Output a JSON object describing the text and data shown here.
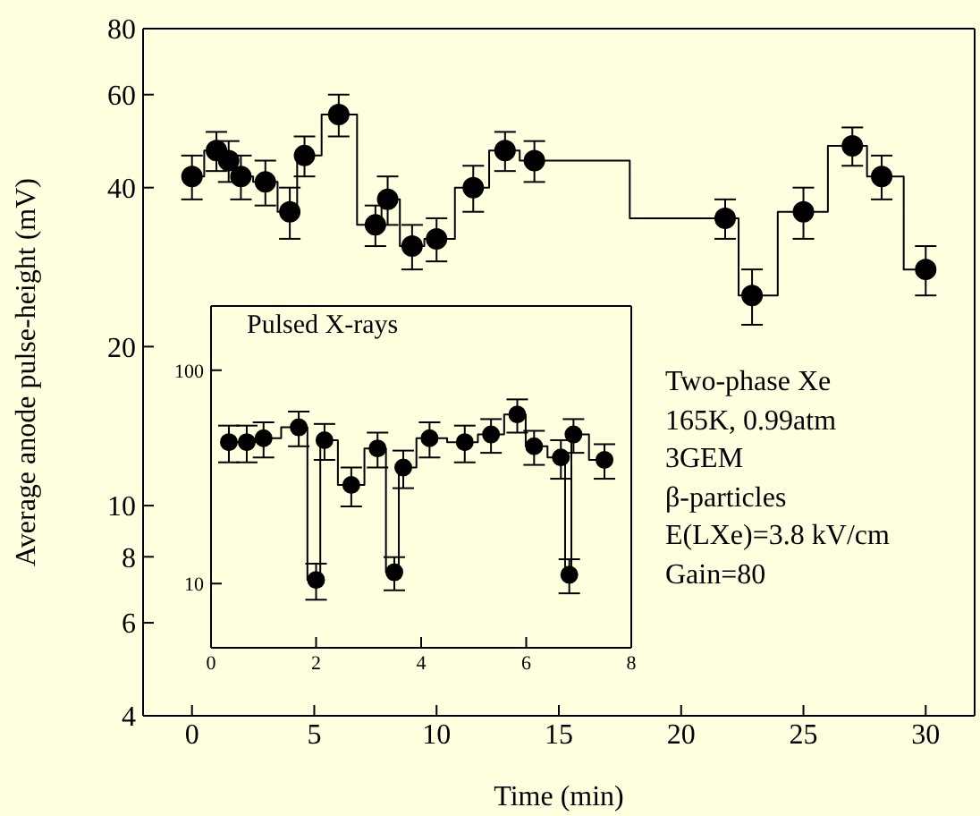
{
  "chart_data": [
    {
      "type": "step",
      "xlabel": "Time (min)",
      "ylabel": "Average anode pulse-height (mV)",
      "x": [
        0,
        1,
        1.5,
        2,
        3,
        4,
        4.6,
        6,
        7.5,
        8,
        9,
        10,
        11.5,
        12.8,
        14,
        21.8,
        22.9,
        25,
        27,
        28.2,
        30
      ],
      "values": [
        42,
        47,
        45,
        42,
        41,
        36,
        46,
        55,
        34,
        38,
        31,
        32,
        40,
        47,
        45,
        35,
        25,
        36,
        48,
        42,
        28
      ],
      "errors": [
        4,
        4,
        4,
        4,
        4,
        4,
        4,
        5,
        3,
        4,
        3,
        3,
        4,
        4,
        4,
        3,
        3,
        4,
        4,
        4,
        3
      ],
      "color": "#000000",
      "marker": "circle",
      "line_style": "solid",
      "log": true,
      "grid": false,
      "legend": false,
      "xlim": [
        -2,
        32
      ],
      "xticks": [
        0,
        5,
        10,
        15,
        20,
        25,
        30
      ],
      "ylim": [
        4,
        80
      ],
      "yticks": [
        4,
        6,
        8,
        10,
        20,
        40,
        60,
        80
      ],
      "annotations": [
        "Two-phase Xe",
        "165K, 0.99atm",
        "3GEM",
        "β-particles",
        "E(LXe)=3.8 kV/cm",
        "Gain=80"
      ]
    },
    {
      "type": "step",
      "title": "Pulsed X-rays",
      "x": [
        0.34,
        0.68,
        1,
        1.67,
        2,
        2.16,
        2.67,
        3.17,
        3.49,
        3.66,
        4.16,
        4.83,
        5.33,
        5.83,
        6.15,
        6.66,
        6.82,
        6.9,
        7.49
      ],
      "values": [
        46,
        46,
        48,
        54,
        10.4,
        47,
        29,
        43,
        11.3,
        35,
        48,
        46,
        50,
        62,
        44,
        39,
        11,
        50,
        38
      ],
      "errors": [
        9,
        9,
        9,
        10,
        2,
        9,
        6,
        8,
        2,
        7,
        9,
        9,
        9,
        11,
        8,
        8,
        2,
        9,
        7
      ],
      "color": "#000000",
      "marker": "circle",
      "line_style": "solid",
      "log": true,
      "grid": false,
      "legend": false,
      "xlim": [
        0,
        8
      ],
      "xticks": [
        0,
        2,
        4,
        6,
        8
      ],
      "ylim": [
        5,
        200
      ],
      "yticks": [
        10,
        100
      ]
    }
  ]
}
